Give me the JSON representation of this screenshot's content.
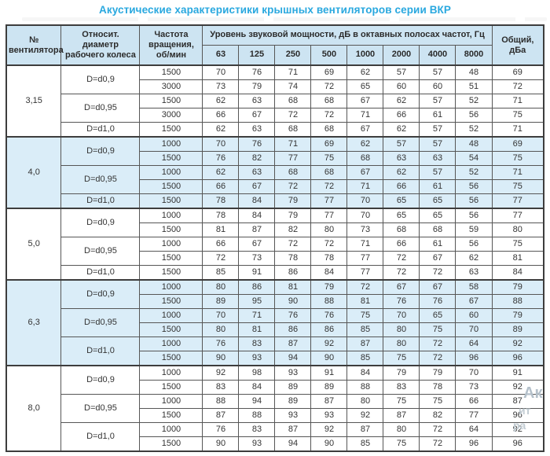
{
  "title": "Акустические характеристики крышных вентиляторов серии ВКР",
  "table": {
    "headers": {
      "fan_number": "№ вентилятора",
      "diameter": "Относит. диаметр рабочего колеса",
      "rpm": "Частота вращения, об/мин",
      "levels_group": "Уровень звуковой мощности, дБ в октавных полосах частот, Гц",
      "frequencies": [
        "63",
        "125",
        "250",
        "500",
        "1000",
        "2000",
        "4000",
        "8000"
      ],
      "total": "Общий, дБа"
    },
    "groups": [
      {
        "fan": "3,15",
        "shaded": false,
        "diameters": [
          {
            "label": "D=d0,9",
            "rows": [
              {
                "rpm": "1500",
                "levels": [
                  70,
                  76,
                  71,
                  69,
                  62,
                  57,
                  57,
                  48
                ],
                "total": 69
              },
              {
                "rpm": "3000",
                "levels": [
                  73,
                  79,
                  74,
                  72,
                  65,
                  60,
                  60,
                  51
                ],
                "total": 72
              }
            ]
          },
          {
            "label": "D=d0,95",
            "rows": [
              {
                "rpm": "1500",
                "levels": [
                  62,
                  63,
                  68,
                  68,
                  67,
                  62,
                  57,
                  52
                ],
                "total": 71
              },
              {
                "rpm": "3000",
                "levels": [
                  66,
                  67,
                  72,
                  72,
                  71,
                  66,
                  61,
                  56
                ],
                "total": 75
              }
            ]
          },
          {
            "label": "D=d1,0",
            "rows": [
              {
                "rpm": "1500",
                "levels": [
                  62,
                  63,
                  68,
                  68,
                  67,
                  62,
                  57,
                  52
                ],
                "total": 71
              }
            ]
          }
        ]
      },
      {
        "fan": "4,0",
        "shaded": true,
        "diameters": [
          {
            "label": "D=d0,9",
            "rows": [
              {
                "rpm": "1000",
                "levels": [
                  70,
                  76,
                  71,
                  69,
                  62,
                  57,
                  57,
                  48
                ],
                "total": 69
              },
              {
                "rpm": "1500",
                "levels": [
                  76,
                  82,
                  77,
                  75,
                  68,
                  63,
                  63,
                  54
                ],
                "total": 75
              }
            ]
          },
          {
            "label": "D=d0,95",
            "rows": [
              {
                "rpm": "1000",
                "levels": [
                  62,
                  63,
                  68,
                  68,
                  67,
                  62,
                  57,
                  52
                ],
                "total": 71
              },
              {
                "rpm": "1500",
                "levels": [
                  66,
                  67,
                  72,
                  72,
                  71,
                  66,
                  61,
                  56
                ],
                "total": 75
              }
            ]
          },
          {
            "label": "D=d1,0",
            "rows": [
              {
                "rpm": "1500",
                "levels": [
                  78,
                  84,
                  79,
                  77,
                  70,
                  65,
                  65,
                  56
                ],
                "total": 77
              }
            ]
          }
        ]
      },
      {
        "fan": "5,0",
        "shaded": false,
        "diameters": [
          {
            "label": "D=d0,9",
            "rows": [
              {
                "rpm": "1000",
                "levels": [
                  78,
                  84,
                  79,
                  77,
                  70,
                  65,
                  65,
                  56
                ],
                "total": 77
              },
              {
                "rpm": "1500",
                "levels": [
                  81,
                  87,
                  82,
                  80,
                  73,
                  68,
                  68,
                  59
                ],
                "total": 80
              }
            ]
          },
          {
            "label": "D=d0,95",
            "rows": [
              {
                "rpm": "1000",
                "levels": [
                  66,
                  67,
                  72,
                  72,
                  71,
                  66,
                  61,
                  56
                ],
                "total": 75
              },
              {
                "rpm": "1500",
                "levels": [
                  72,
                  73,
                  78,
                  78,
                  77,
                  72,
                  67,
                  62
                ],
                "total": 81
              }
            ]
          },
          {
            "label": "D=d1,0",
            "rows": [
              {
                "rpm": "1500",
                "levels": [
                  85,
                  91,
                  86,
                  84,
                  77,
                  72,
                  72,
                  63
                ],
                "total": 84
              }
            ]
          }
        ]
      },
      {
        "fan": "6,3",
        "shaded": true,
        "diameters": [
          {
            "label": "D=d0,9",
            "rows": [
              {
                "rpm": "1000",
                "levels": [
                  80,
                  86,
                  81,
                  79,
                  72,
                  67,
                  67,
                  58
                ],
                "total": 79
              },
              {
                "rpm": "1500",
                "levels": [
                  89,
                  95,
                  90,
                  88,
                  81,
                  76,
                  76,
                  67
                ],
                "total": 88
              }
            ]
          },
          {
            "label": "D=d0,95",
            "rows": [
              {
                "rpm": "1000",
                "levels": [
                  70,
                  71,
                  76,
                  76,
                  75,
                  70,
                  65,
                  60
                ],
                "total": 79
              },
              {
                "rpm": "1500",
                "levels": [
                  80,
                  81,
                  86,
                  86,
                  85,
                  80,
                  75,
                  70
                ],
                "total": 89
              }
            ]
          },
          {
            "label": "D=d1,0",
            "rows": [
              {
                "rpm": "1000",
                "levels": [
                  76,
                  83,
                  87,
                  92,
                  87,
                  80,
                  72,
                  64
                ],
                "total": 92
              },
              {
                "rpm": "1500",
                "levels": [
                  90,
                  93,
                  94,
                  90,
                  85,
                  75,
                  72,
                  96
                ],
                "total": 96
              }
            ]
          }
        ]
      },
      {
        "fan": "8,0",
        "shaded": false,
        "diameters": [
          {
            "label": "D=d0,9",
            "rows": [
              {
                "rpm": "1000",
                "levels": [
                  92,
                  98,
                  93,
                  91,
                  84,
                  79,
                  79,
                  70
                ],
                "total": 91
              },
              {
                "rpm": "1500",
                "levels": [
                  83,
                  84,
                  89,
                  89,
                  88,
                  83,
                  78,
                  73
                ],
                "total": 92
              }
            ]
          },
          {
            "label": "D=d0,95",
            "rows": [
              {
                "rpm": "1000",
                "levels": [
                  88,
                  94,
                  89,
                  87,
                  80,
                  75,
                  75,
                  66
                ],
                "total": 87
              },
              {
                "rpm": "1500",
                "levels": [
                  87,
                  88,
                  93,
                  93,
                  92,
                  87,
                  82,
                  77
                ],
                "total": 96
              }
            ]
          },
          {
            "label": "D=d1,0",
            "rows": [
              {
                "rpm": "1000",
                "levels": [
                  76,
                  83,
                  87,
                  92,
                  87,
                  80,
                  72,
                  64
                ],
                "total": 92
              },
              {
                "rpm": "1500",
                "levels": [
                  90,
                  93,
                  94,
                  90,
                  85,
                  75,
                  72,
                  96
                ],
                "total": 96
              }
            ]
          }
        ]
      }
    ]
  },
  "watermark": {
    "fragments": [
      "Ак",
      "ит",
      "ра"
    ]
  },
  "colors": {
    "accent": "#29a8df",
    "header_bg": "#cde4f2",
    "shaded_row_bg": "#daedf8",
    "border": "#565656"
  }
}
